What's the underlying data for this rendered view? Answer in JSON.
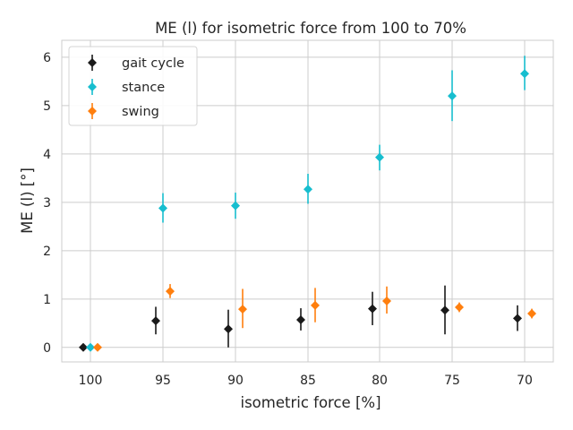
{
  "chart_data": {
    "type": "scatter",
    "title": "ME (l) for isometric force from 100 to 70%",
    "xlabel": "isometric force [%]",
    "ylabel": "ME (l) [°]",
    "categories": [
      "100",
      "95",
      "90",
      "85",
      "80",
      "75",
      "70"
    ],
    "y_ticks": [
      0,
      1,
      2,
      3,
      4,
      5,
      6
    ],
    "ylim": [
      -0.3,
      6.35
    ],
    "grid": true,
    "legend_position": "top-left",
    "marker": "diamond",
    "series": [
      {
        "name": "gait cycle",
        "color": "#1a1a1a",
        "values": [
          0.0,
          0.55,
          0.38,
          0.57,
          0.8,
          0.77,
          0.6
        ],
        "err_low": [
          0.0,
          0.27,
          0.0,
          0.35,
          0.46,
          0.27,
          0.34
        ],
        "err_high": [
          0.0,
          0.84,
          0.78,
          0.81,
          1.15,
          1.28,
          0.87
        ]
      },
      {
        "name": "stance",
        "color": "#17becf",
        "values": [
          0.0,
          2.88,
          2.93,
          3.27,
          3.93,
          5.2,
          5.66
        ],
        "err_low": [
          0.0,
          2.58,
          2.66,
          2.97,
          3.66,
          4.68,
          5.32
        ],
        "err_high": [
          0.0,
          3.19,
          3.2,
          3.59,
          4.19,
          5.73,
          6.03
        ]
      },
      {
        "name": "swing",
        "color": "#ff7f0e",
        "values": [
          0.0,
          1.16,
          0.79,
          0.87,
          0.96,
          0.83,
          0.7
        ],
        "err_low": [
          0.0,
          1.02,
          0.4,
          0.52,
          0.7,
          0.73,
          0.6
        ],
        "err_high": [
          0.0,
          1.31,
          1.21,
          1.23,
          1.26,
          0.93,
          0.8
        ]
      }
    ]
  }
}
